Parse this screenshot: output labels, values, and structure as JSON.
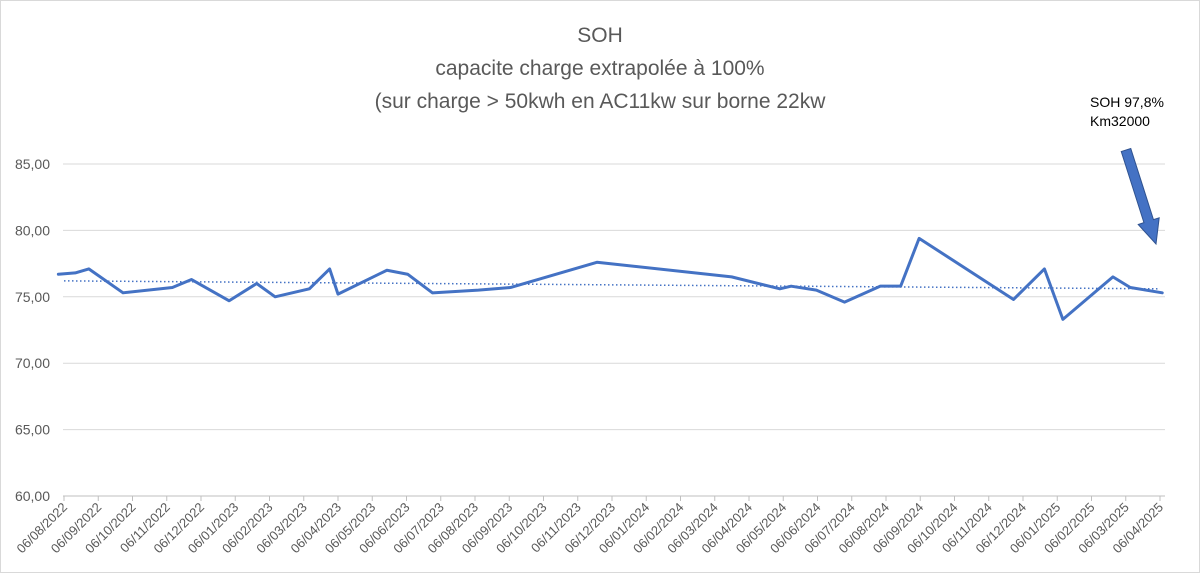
{
  "chart_data": {
    "type": "line",
    "title_lines": [
      "SOH",
      "capacite charge extrapolée à 100%",
      "(sur charge > 50kwh en AC11kw sur borne 22kw"
    ],
    "ylim": [
      60,
      85
    ],
    "y_ticks": [
      "60,00",
      "65,00",
      "70,00",
      "75,00",
      "80,00",
      "85,00"
    ],
    "x_tick_labels": [
      "06/08/2022",
      "06/09/2022",
      "06/10/2022",
      "06/11/2022",
      "06/12/2022",
      "06/01/2023",
      "06/02/2023",
      "06/03/2023",
      "06/04/2023",
      "06/05/2023",
      "06/06/2023",
      "06/07/2023",
      "06/08/2023",
      "06/09/2023",
      "06/10/2023",
      "06/11/2023",
      "06/12/2023",
      "06/01/2024",
      "06/02/2024",
      "06/03/2024",
      "06/04/2024",
      "06/05/2024",
      "06/06/2024",
      "06/07/2024",
      "06/08/2024",
      "06/09/2024",
      "06/10/2024",
      "06/11/2024",
      "06/12/2024",
      "06/01/2025",
      "06/02/2025",
      "06/03/2025",
      "06/04/2025"
    ],
    "series": [
      {
        "color": "#4472c4",
        "points": [
          [
            "2022-08-01",
            76.7
          ],
          [
            "2022-08-16",
            76.8
          ],
          [
            "2022-08-28",
            77.1
          ],
          [
            "2022-09-28",
            75.3
          ],
          [
            "2022-11-11",
            75.7
          ],
          [
            "2022-11-28",
            76.3
          ],
          [
            "2022-12-31",
            74.7
          ],
          [
            "2023-01-25",
            76.0
          ],
          [
            "2023-02-11",
            75.0
          ],
          [
            "2023-03-11",
            75.6
          ],
          [
            "2023-03-29",
            77.1
          ],
          [
            "2023-04-06",
            75.2
          ],
          [
            "2023-05-19",
            77.0
          ],
          [
            "2023-06-07",
            76.7
          ],
          [
            "2023-06-29",
            75.3
          ],
          [
            "2023-08-09",
            75.5
          ],
          [
            "2023-09-07",
            75.7
          ],
          [
            "2023-11-23",
            77.6
          ],
          [
            "2024-03-21",
            76.5
          ],
          [
            "2024-05-03",
            75.6
          ],
          [
            "2024-05-13",
            75.8
          ],
          [
            "2024-06-05",
            75.5
          ],
          [
            "2024-06-30",
            74.6
          ],
          [
            "2024-08-01",
            75.8
          ],
          [
            "2024-08-19",
            75.8
          ],
          [
            "2024-09-05",
            79.4
          ],
          [
            "2024-11-28",
            74.8
          ],
          [
            "2024-12-25",
            77.1
          ],
          [
            "2025-01-11",
            73.3
          ],
          [
            "2025-02-25",
            76.5
          ],
          [
            "2025-03-10",
            75.7
          ],
          [
            "2025-04-08",
            75.3
          ]
        ]
      }
    ],
    "trendline": {
      "style": "dotted linear",
      "color": "#4472c4",
      "start": 76.2,
      "end": 75.6
    },
    "annotation": {
      "lines": [
        "SOH 97,8%",
        "Km32000"
      ],
      "arrow_color": "#4472c4"
    },
    "grid": "horizontal",
    "legend": "none"
  }
}
